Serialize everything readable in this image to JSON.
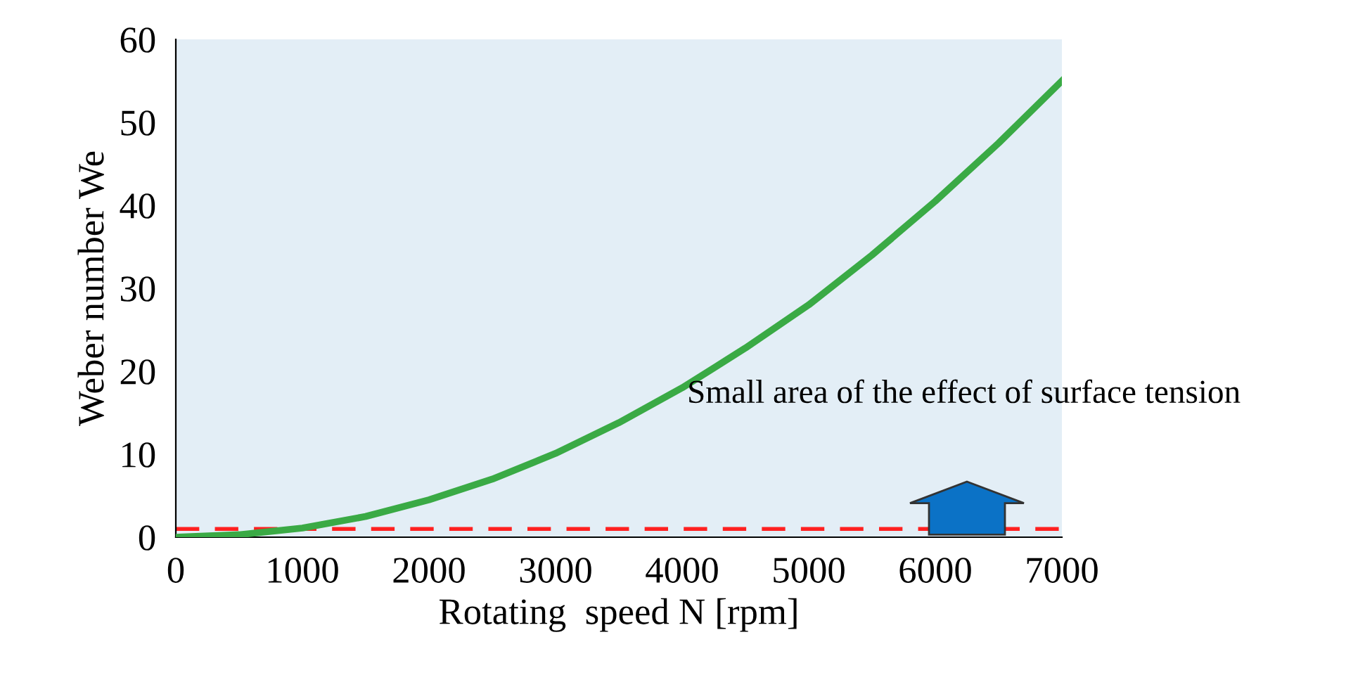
{
  "chart_data": {
    "type": "line",
    "xlabel": "Rotating  speed N [rpm]",
    "ylabel": "Weber number We",
    "x": [
      0,
      500,
      1000,
      1500,
      2000,
      2500,
      3000,
      3500,
      4000,
      4500,
      5000,
      5500,
      6000,
      6500,
      7000
    ],
    "series": [
      {
        "color": "#3aaa45",
        "values": [
          0,
          0.3,
          1.1,
          2.5,
          4.5,
          7,
          10.1,
          13.8,
          18,
          22.8,
          28,
          34,
          40.5,
          47.5,
          55
        ]
      }
    ],
    "xlim": [
      0,
      7000
    ],
    "ylim": [
      0,
      60
    ],
    "xticks": [
      0,
      1000,
      2000,
      3000,
      4000,
      5000,
      6000,
      7000
    ],
    "yticks": [
      0,
      10,
      20,
      30,
      40,
      50,
      60
    ],
    "ref_lines": [
      {
        "axis": "y",
        "value": 1,
        "color": "#ff2020",
        "line_style": "dashed"
      }
    ],
    "annotations": [
      "Small area of the effect of surface tension"
    ],
    "grid": false,
    "marker": "none",
    "line_style": "solid"
  }
}
